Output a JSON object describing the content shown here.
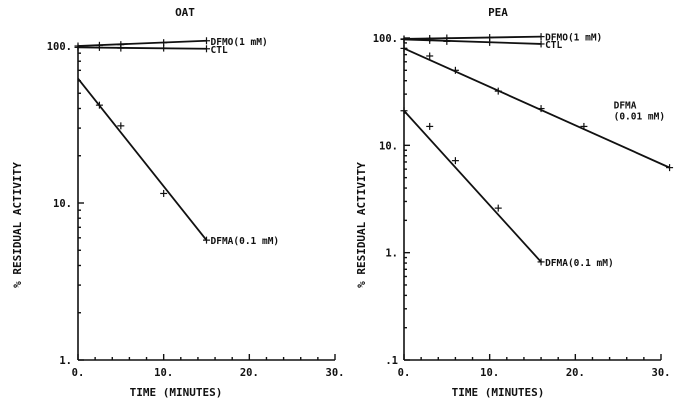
{
  "chart_data": [
    {
      "type": "scatter",
      "title": "OAT",
      "xlabel": "TIME (MINUTES)",
      "ylabel": "% RESIDUAL ACTIVITY",
      "xlim": [
        0,
        30
      ],
      "ylim": [
        1,
        100
      ],
      "yscale": "log",
      "xticks": [
        "0.",
        "10.",
        "20.",
        "30."
      ],
      "yticks": [
        "1.",
        "10.",
        "100."
      ],
      "series": [
        {
          "name": "DFMO(1 mM)",
          "fit": [
            [
              0,
              100
            ],
            [
              15,
              108
            ]
          ],
          "x": [
            0,
            2.5,
            5,
            10,
            15
          ],
          "y": [
            100,
            101,
            102,
            105,
            108
          ],
          "label_pos": [
            15,
            108
          ]
        },
        {
          "name": "CTL",
          "fit": [
            [
              0,
              98
            ],
            [
              15,
              96
            ]
          ],
          "x": [
            0,
            2.5,
            5,
            10,
            15
          ],
          "y": [
            98,
            98,
            97,
            97,
            96
          ],
          "label_pos": [
            15,
            96
          ]
        },
        {
          "name": "DFMA(0.1 mM)",
          "fit": [
            [
              0,
              62
            ],
            [
              15,
              5.8
            ]
          ],
          "x": [
            2.5,
            5,
            10,
            15
          ],
          "y": [
            42,
            31,
            11.5,
            5.8
          ],
          "label_pos": [
            15,
            5.8
          ]
        }
      ]
    },
    {
      "type": "scatter",
      "title": "PEA",
      "xlabel": "TIME (MINUTES)",
      "ylabel": "% RESIDUAL ACTIVITY",
      "xlim": [
        0,
        30
      ],
      "ylim": [
        0.1,
        100
      ],
      "yscale": "log",
      "xticks": [
        "0.",
        "10.",
        "20.",
        "30."
      ],
      "yticks": [
        ".1",
        "1.",
        "10.",
        "100."
      ],
      "series": [
        {
          "name": "DFMO(1 mM)",
          "fit": [
            [
              0,
              98
            ],
            [
              16,
              103
            ]
          ],
          "x": [
            0,
            3,
            5,
            10,
            16
          ],
          "y": [
            98,
            99,
            100,
            101,
            103
          ],
          "label_pos": [
            16,
            103
          ]
        },
        {
          "name": "CTL",
          "fit": [
            [
              0,
              97
            ],
            [
              16,
              88
            ]
          ],
          "x": [
            0,
            3,
            5,
            10,
            16
          ],
          "y": [
            97,
            95,
            93,
            91,
            88
          ],
          "label_pos": [
            16,
            88
          ]
        },
        {
          "name": "DFMA",
          "name_line2": "(0.01 mM)",
          "fit": [
            [
              0,
              80
            ],
            [
              31,
              6.2
            ]
          ],
          "x": [
            0,
            3,
            6,
            11,
            16,
            21,
            31
          ],
          "y": [
            80,
            68,
            50,
            32,
            22,
            15,
            6.2
          ],
          "label_pos": [
            24,
            21
          ]
        },
        {
          "name": "DFMA(0.1 mM)",
          "fit": [
            [
              0,
              21
            ],
            [
              16,
              0.82
            ]
          ],
          "x": [
            0,
            3,
            6,
            11,
            16
          ],
          "y": [
            21,
            15,
            7.2,
            2.6,
            0.82
          ],
          "label_pos": [
            16,
            0.82
          ]
        }
      ]
    }
  ]
}
